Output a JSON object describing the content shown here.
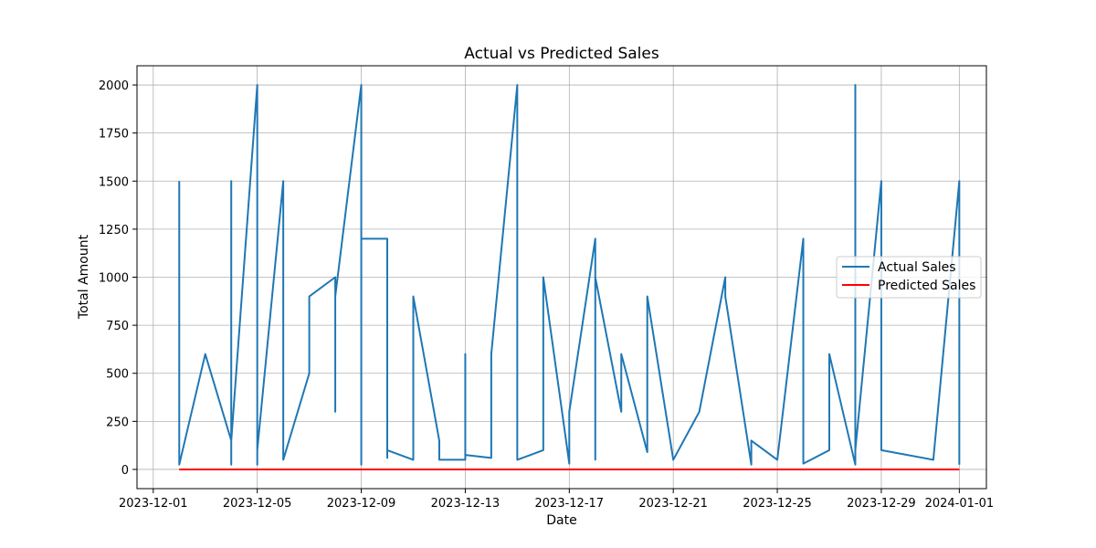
{
  "chart_data": {
    "type": "line",
    "title": "Actual vs Predicted Sales",
    "xlabel": "Date",
    "ylabel": "Total Amount",
    "xlim": [
      "2023-11-30T09:00",
      "2024-01-02T01:00"
    ],
    "ylim": [
      -100,
      2100
    ],
    "xticks": [
      "2023-12-01",
      "2023-12-05",
      "2023-12-09",
      "2023-12-13",
      "2023-12-17",
      "2023-12-21",
      "2023-12-25",
      "2023-12-29",
      "2024-01-01"
    ],
    "yticks": [
      0,
      250,
      500,
      750,
      1000,
      1250,
      1500,
      1750,
      2000
    ],
    "grid": true,
    "legend_position": "center-right",
    "series": [
      {
        "name": "Actual Sales",
        "color": "#1f77b4",
        "x": [
          "2023-12-02",
          "2023-12-02",
          "2023-12-03",
          "2023-12-04",
          "2023-12-04",
          "2023-12-04",
          "2023-12-04",
          "2023-12-05",
          "2023-12-05",
          "2023-12-05",
          "2023-12-06",
          "2023-12-06",
          "2023-12-07",
          "2023-12-07",
          "2023-12-08",
          "2023-12-08",
          "2023-12-08",
          "2023-12-09",
          "2023-12-09",
          "2023-12-09",
          "2023-12-10",
          "2023-12-10",
          "2023-12-10",
          "2023-12-11",
          "2023-12-11",
          "2023-12-12",
          "2023-12-12",
          "2023-12-13",
          "2023-12-13",
          "2023-12-13",
          "2023-12-14",
          "2023-12-14",
          "2023-12-15",
          "2023-12-15",
          "2023-12-16",
          "2023-12-16",
          "2023-12-17",
          "2023-12-17",
          "2023-12-18",
          "2023-12-18",
          "2023-12-18",
          "2023-12-19",
          "2023-12-19",
          "2023-12-20",
          "2023-12-20",
          "2023-12-20",
          "2023-12-21",
          "2023-12-22",
          "2023-12-23",
          "2023-12-23",
          "2023-12-24",
          "2023-12-24",
          "2023-12-25",
          "2023-12-26",
          "2023-12-26",
          "2023-12-26",
          "2023-12-26",
          "2023-12-27",
          "2023-12-27",
          "2023-12-28",
          "2023-12-28",
          "2023-12-28",
          "2023-12-29",
          "2023-12-29",
          "2023-12-29",
          "2023-12-31",
          "2024-01-01",
          "2024-01-01"
        ],
        "y": [
          1500,
          25,
          600,
          150,
          1500,
          25,
          150,
          2000,
          25,
          100,
          1500,
          50,
          500,
          900,
          1000,
          300,
          900,
          2000,
          25,
          1200,
          1200,
          60,
          100,
          50,
          900,
          150,
          50,
          50,
          600,
          75,
          60,
          600,
          2000,
          50,
          100,
          1000,
          30,
          300,
          1200,
          50,
          1000,
          300,
          600,
          90,
          150,
          900,
          50,
          300,
          1000,
          900,
          25,
          150,
          50,
          1200,
          200,
          900,
          30,
          100,
          600,
          25,
          2000,
          100,
          1500,
          1200,
          100,
          50,
          1500,
          25
        ]
      },
      {
        "name": "Predicted Sales",
        "color": "#ff0000",
        "x": [
          "2023-12-02",
          "2024-01-01"
        ],
        "y": [
          0,
          0
        ]
      }
    ]
  }
}
